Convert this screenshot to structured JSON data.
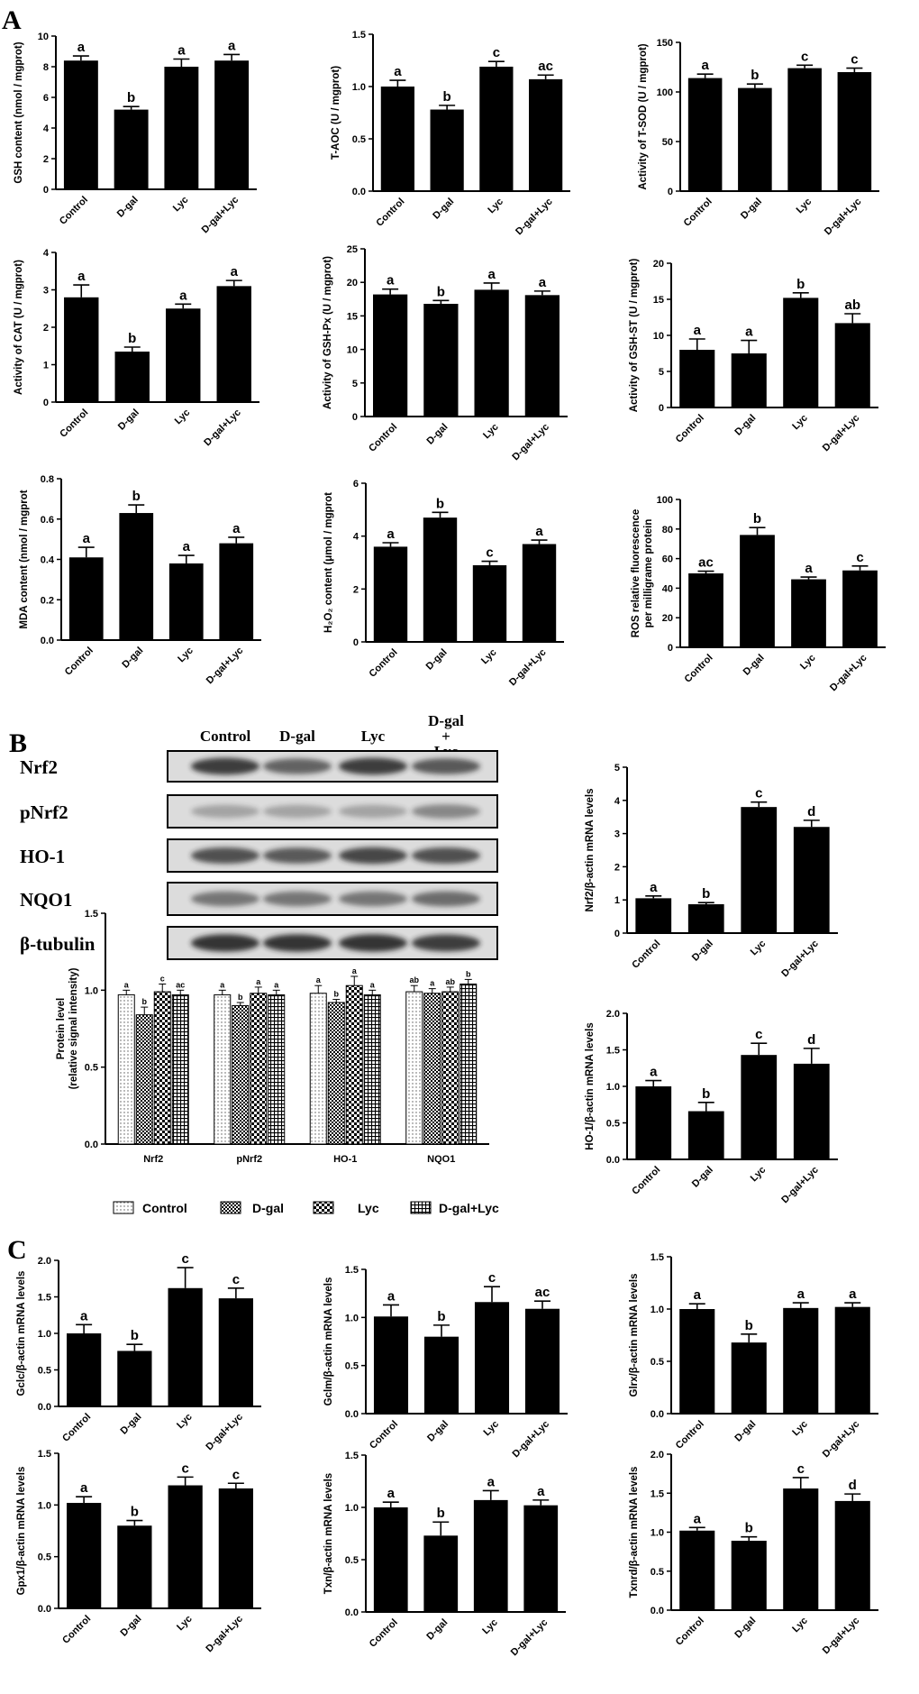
{
  "panels": {
    "A": "A",
    "B": "B",
    "C": "C"
  },
  "categories": [
    "Control",
    "D-gal",
    "Lyc",
    "D-gal+Lyc"
  ],
  "chart_data": [
    {
      "id": "gsh",
      "type": "bar",
      "ylabel": "GSH content (nmol / mgprot)",
      "ylim": [
        0,
        10
      ],
      "ticks": [
        0,
        2,
        4,
        6,
        8,
        10
      ],
      "values": [
        8.4,
        5.2,
        8.0,
        8.4
      ],
      "errors": [
        0.3,
        0.2,
        0.5,
        0.4
      ],
      "letters": [
        "a",
        "b",
        "a",
        "a"
      ]
    },
    {
      "id": "taoc",
      "type": "bar",
      "ylabel": "T-AOC (U / mgprot)",
      "ylim": [
        0,
        1.5
      ],
      "ticks": [
        "0.0",
        "0.5",
        "1.0",
        "1.5"
      ],
      "values": [
        1.0,
        0.78,
        1.19,
        1.07
      ],
      "errors": [
        0.06,
        0.04,
        0.05,
        0.04
      ],
      "letters": [
        "a",
        "b",
        "c",
        "ac"
      ]
    },
    {
      "id": "tsod",
      "type": "bar",
      "ylabel": "Activity of T-SOD (U / mgprot)",
      "ylim": [
        0,
        150
      ],
      "ticks": [
        0,
        50,
        100,
        150
      ],
      "values": [
        114,
        104,
        124,
        120
      ],
      "errors": [
        4,
        4,
        3,
        4
      ],
      "letters": [
        "a",
        "b",
        "c",
        "c"
      ]
    },
    {
      "id": "cat",
      "type": "bar",
      "ylabel": "Activity of CAT (U / mgprot)",
      "ylim": [
        0,
        4
      ],
      "ticks": [
        0,
        1,
        2,
        3,
        4
      ],
      "values": [
        2.8,
        1.35,
        2.5,
        3.1
      ],
      "errors": [
        0.33,
        0.12,
        0.12,
        0.15
      ],
      "letters": [
        "a",
        "b",
        "a",
        "a"
      ]
    },
    {
      "id": "gshpx",
      "type": "bar",
      "ylabel": "Activity of GSH-Px (U / mgprot)",
      "ylim": [
        0,
        25
      ],
      "ticks": [
        0,
        5,
        10,
        15,
        20,
        25
      ],
      "values": [
        18.2,
        16.8,
        18.9,
        18.1
      ],
      "errors": [
        0.8,
        0.5,
        1.0,
        0.6
      ],
      "letters": [
        "a",
        "b",
        "a",
        "a"
      ]
    },
    {
      "id": "gshst",
      "type": "bar",
      "ylabel": "Activity of GSH-ST (U / mgprot)",
      "ylim": [
        0,
        20
      ],
      "ticks": [
        0,
        5,
        10,
        15,
        20
      ],
      "values": [
        8.0,
        7.5,
        15.2,
        11.7
      ],
      "errors": [
        1.5,
        1.8,
        0.7,
        1.3
      ],
      "letters": [
        "a",
        "a",
        "b",
        "ab"
      ]
    },
    {
      "id": "mda",
      "type": "bar",
      "ylabel": "MDA content (nmol / mgprot",
      "ylim": [
        0,
        0.8
      ],
      "ticks": [
        "0.0",
        "0.2",
        "0.4",
        "0.6",
        "0.8"
      ],
      "values": [
        0.41,
        0.63,
        0.38,
        0.48
      ],
      "errors": [
        0.05,
        0.04,
        0.04,
        0.03
      ],
      "letters": [
        "a",
        "b",
        "a",
        "a"
      ]
    },
    {
      "id": "h2o2",
      "type": "bar",
      "ylabel": "H₂O₂ content (μmol / mgprot",
      "ylim": [
        0,
        6
      ],
      "ticks": [
        0,
        2,
        4,
        6
      ],
      "values": [
        3.6,
        4.7,
        2.9,
        3.7
      ],
      "errors": [
        0.15,
        0.2,
        0.15,
        0.15
      ],
      "letters": [
        "a",
        "b",
        "c",
        "a"
      ]
    },
    {
      "id": "ros",
      "type": "bar",
      "ylabel": "ROS relative fluorescence",
      "ylabel2": "per milligrame protein",
      "ylim": [
        0,
        100
      ],
      "ticks": [
        0,
        20,
        40,
        60,
        80,
        100
      ],
      "values": [
        50,
        76,
        46,
        52
      ],
      "errors": [
        1.5,
        5,
        1.5,
        3
      ],
      "letters": [
        "ac",
        "b",
        "a",
        "c"
      ]
    },
    {
      "id": "nrf2mrna",
      "type": "bar",
      "ylabel": "Nrf2/β-actin mRNA levels",
      "ylim": [
        0,
        5
      ],
      "ticks": [
        0,
        1,
        2,
        3,
        4,
        5
      ],
      "values": [
        1.05,
        0.87,
        3.8,
        3.2
      ],
      "errors": [
        0.07,
        0.05,
        0.15,
        0.2
      ],
      "letters": [
        "a",
        "b",
        "c",
        "d"
      ]
    },
    {
      "id": "ho1mrna",
      "type": "bar",
      "ylabel": "HO-1/β-actin mRNA levels",
      "ylim": [
        0,
        2.0
      ],
      "ticks": [
        "0.0",
        "0.5",
        "1.0",
        "1.5",
        "2.0"
      ],
      "values": [
        1.0,
        0.66,
        1.43,
        1.31
      ],
      "errors": [
        0.08,
        0.12,
        0.16,
        0.21
      ],
      "letters": [
        "a",
        "b",
        "c",
        "d"
      ]
    },
    {
      "id": "protein",
      "type": "bar",
      "ylabel": "Protein level",
      "ylabel2": "(relative signal intensity)",
      "ylim": [
        0,
        1.5
      ],
      "ticks": [
        "0.0",
        "0.5",
        "1.0",
        "1.5"
      ],
      "categories": [
        "Nrf2",
        "pNrf2",
        "HO-1",
        "NQO1"
      ],
      "series": [
        {
          "name": "Control",
          "values": [
            0.97,
            0.97,
            0.98,
            0.99
          ],
          "errors": [
            0.03,
            0.03,
            0.05,
            0.04
          ],
          "letters": [
            "a",
            "a",
            "a",
            "ab"
          ]
        },
        {
          "name": "D-gal",
          "values": [
            0.84,
            0.9,
            0.92,
            0.98
          ],
          "errors": [
            0.05,
            0.02,
            0.02,
            0.03
          ],
          "letters": [
            "b",
            "b",
            "b",
            "a"
          ]
        },
        {
          "name": "Lyc",
          "values": [
            0.99,
            0.98,
            1.03,
            0.99
          ],
          "errors": [
            0.05,
            0.04,
            0.06,
            0.03
          ],
          "letters": [
            "c",
            "a",
            "a",
            "ab"
          ]
        },
        {
          "name": "D-gal+Lyc",
          "values": [
            0.97,
            0.97,
            0.97,
            1.04
          ],
          "errors": [
            0.03,
            0.03,
            0.03,
            0.03
          ],
          "letters": [
            "ac",
            "a",
            "a",
            "b"
          ]
        }
      ]
    },
    {
      "id": "gclc",
      "type": "bar",
      "ylabel": "Gclc/β-actin mRNA levels",
      "ylim": [
        0,
        2.0
      ],
      "ticks": [
        "0.0",
        "0.5",
        "1.0",
        "1.5",
        "2.0"
      ],
      "values": [
        1.0,
        0.76,
        1.62,
        1.48
      ],
      "errors": [
        0.12,
        0.09,
        0.28,
        0.14
      ],
      "letters": [
        "a",
        "b",
        "c",
        "c"
      ]
    },
    {
      "id": "gclm",
      "type": "bar",
      "ylabel": "Gclm/β-actin mRNA levels",
      "ylim": [
        0,
        1.5
      ],
      "ticks": [
        "0.0",
        "0.5",
        "1.0",
        "1.5"
      ],
      "values": [
        1.01,
        0.8,
        1.16,
        1.09
      ],
      "errors": [
        0.12,
        0.12,
        0.16,
        0.08
      ],
      "letters": [
        "a",
        "b",
        "c",
        "ac"
      ]
    },
    {
      "id": "glrx",
      "type": "bar",
      "ylabel": "Glrx/β-actin mRNA levels",
      "ylim": [
        0,
        1.5
      ],
      "ticks": [
        "0.0",
        "0.5",
        "1.0",
        "1.5"
      ],
      "values": [
        1.0,
        0.68,
        1.01,
        1.02
      ],
      "errors": [
        0.05,
        0.08,
        0.05,
        0.04
      ],
      "letters": [
        "a",
        "b",
        "a",
        "a"
      ]
    },
    {
      "id": "gpx1",
      "type": "bar",
      "ylabel": "Gpx1/β-actin mRNA levels",
      "ylim": [
        0,
        1.5
      ],
      "ticks": [
        "0.0",
        "0.5",
        "1.0",
        "1.5"
      ],
      "values": [
        1.02,
        0.8,
        1.19,
        1.16
      ],
      "errors": [
        0.06,
        0.05,
        0.08,
        0.05
      ],
      "letters": [
        "a",
        "b",
        "c",
        "c"
      ]
    },
    {
      "id": "txn",
      "type": "bar",
      "ylabel": "Txn/β-actin mRNA levels",
      "ylim": [
        0,
        1.5
      ],
      "ticks": [
        "0.0",
        "0.5",
        "1.0",
        "1.5"
      ],
      "values": [
        1.0,
        0.73,
        1.07,
        1.02
      ],
      "errors": [
        0.05,
        0.13,
        0.09,
        0.05
      ],
      "letters": [
        "a",
        "b",
        "a",
        "a"
      ]
    },
    {
      "id": "txnrd",
      "type": "bar",
      "ylabel": "Txnrd/β-actin mRNA levels",
      "ylim": [
        0,
        2.0
      ],
      "ticks": [
        "0.0",
        "0.5",
        "1.0",
        "1.5",
        "2.0"
      ],
      "values": [
        1.02,
        0.89,
        1.56,
        1.4
      ],
      "errors": [
        0.04,
        0.05,
        0.14,
        0.09
      ],
      "letters": [
        "a",
        "b",
        "c",
        "d"
      ]
    }
  ],
  "western_blot": {
    "columns": [
      "Control",
      "D-gal",
      "Lyc"
    ],
    "column4": [
      "D-gal",
      "+",
      "Lyc"
    ],
    "rows": [
      "Nrf2",
      "pNrf2",
      "HO-1",
      "NQO1",
      "β-tubulin"
    ],
    "intensity": [
      [
        0.85,
        0.65,
        0.85,
        0.7
      ],
      [
        0.3,
        0.3,
        0.3,
        0.45
      ],
      [
        0.75,
        0.7,
        0.8,
        0.75
      ],
      [
        0.55,
        0.55,
        0.55,
        0.6
      ],
      [
        0.9,
        0.9,
        0.9,
        0.85
      ]
    ]
  },
  "legend": [
    "Control",
    "D-gal",
    "Lyc",
    "D-gal+Lyc"
  ],
  "colors": {
    "bar": "#000000",
    "blot_bg": "#dcdcdc",
    "band": "#202020"
  }
}
